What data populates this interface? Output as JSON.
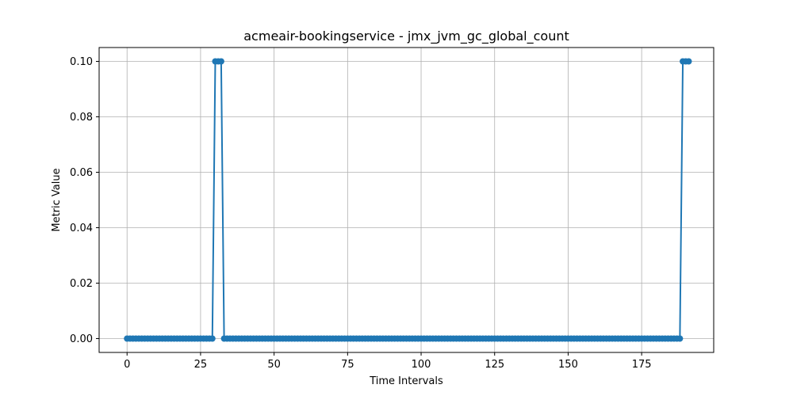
{
  "chart_data": {
    "type": "line",
    "title": "acmeair-bookingservice - jmx_jvm_gc_global_count",
    "xlabel": "Time Intervals",
    "ylabel": "Metric Value",
    "xlim": [
      -9.5,
      199.5
    ],
    "ylim": [
      -0.005,
      0.105
    ],
    "xticks": [
      0,
      25,
      50,
      75,
      100,
      125,
      150,
      175
    ],
    "xtick_labels": [
      "0",
      "25",
      "50",
      "75",
      "100",
      "125",
      "150",
      "175"
    ],
    "yticks": [
      0.0,
      0.02,
      0.04,
      0.06,
      0.08,
      0.1
    ],
    "ytick_labels": [
      "0.00",
      "0.02",
      "0.04",
      "0.06",
      "0.08",
      "0.10"
    ],
    "grid": true,
    "color": "#1f77b4",
    "markers": true,
    "series": [
      {
        "x_start": 0,
        "values": [
          0,
          0,
          0,
          0,
          0,
          0,
          0,
          0,
          0,
          0,
          0,
          0,
          0,
          0,
          0,
          0,
          0,
          0,
          0,
          0,
          0,
          0,
          0,
          0,
          0,
          0,
          0,
          0,
          0,
          0,
          0.1,
          0.1,
          0.1,
          0,
          0,
          0,
          0,
          0,
          0,
          0,
          0,
          0,
          0,
          0,
          0,
          0,
          0,
          0,
          0,
          0,
          0,
          0,
          0,
          0,
          0,
          0,
          0,
          0,
          0,
          0,
          0,
          0,
          0,
          0,
          0,
          0,
          0,
          0,
          0,
          0,
          0,
          0,
          0,
          0,
          0,
          0,
          0,
          0,
          0,
          0,
          0,
          0,
          0,
          0,
          0,
          0,
          0,
          0,
          0,
          0,
          0,
          0,
          0,
          0,
          0,
          0,
          0,
          0,
          0,
          0,
          0,
          0,
          0,
          0,
          0,
          0,
          0,
          0,
          0,
          0,
          0,
          0,
          0,
          0,
          0,
          0,
          0,
          0,
          0,
          0,
          0,
          0,
          0,
          0,
          0,
          0,
          0,
          0,
          0,
          0,
          0,
          0,
          0,
          0,
          0,
          0,
          0,
          0,
          0,
          0,
          0,
          0,
          0,
          0,
          0,
          0,
          0,
          0,
          0,
          0,
          0,
          0,
          0,
          0,
          0,
          0,
          0,
          0,
          0,
          0,
          0,
          0,
          0,
          0,
          0,
          0,
          0,
          0,
          0,
          0,
          0,
          0,
          0,
          0,
          0,
          0,
          0,
          0,
          0,
          0,
          0,
          0,
          0,
          0,
          0,
          0,
          0,
          0,
          0,
          0.1,
          0.1,
          0.1
        ]
      }
    ]
  }
}
